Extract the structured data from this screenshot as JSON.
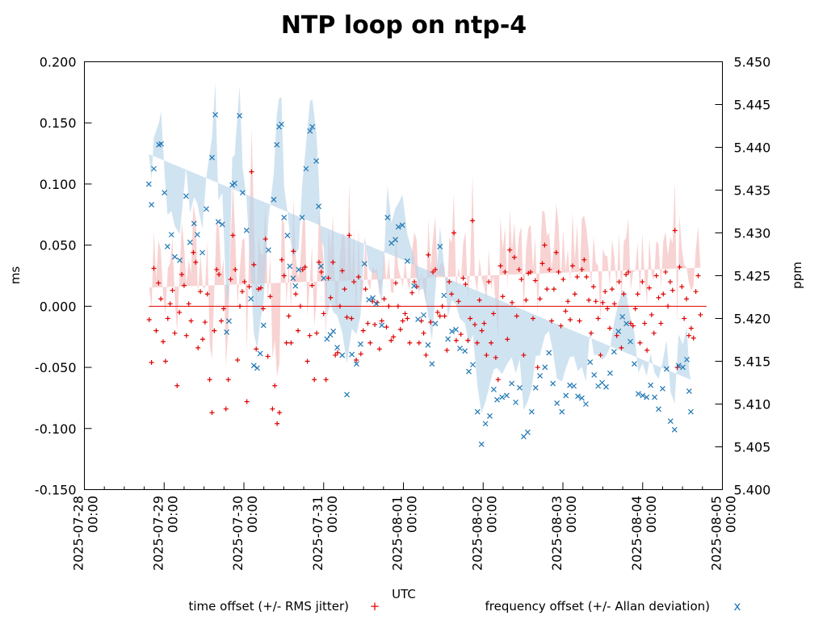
{
  "chart_data": {
    "type": "scatter",
    "title": "NTP loop on ntp-4",
    "xlabel": "UTC",
    "ylabel": "ms",
    "y2label": "ppm",
    "x_start": "2025-07-28 00:00",
    "x_unit": "hours since 2025-07-28 00:00",
    "xlim_hours": [
      0,
      192
    ],
    "ylim": [
      -0.15,
      0.2
    ],
    "y2lim": [
      5.4,
      5.45
    ],
    "grid": false,
    "legend_position": "bottom",
    "x_ticks": [
      {
        "hour": 0,
        "line1": "2025-07-28",
        "line2": "00:00"
      },
      {
        "hour": 24,
        "line1": "2025-07-29",
        "line2": "00:00"
      },
      {
        "hour": 48,
        "line1": "2025-07-30",
        "line2": "00:00"
      },
      {
        "hour": 72,
        "line1": "2025-07-31",
        "line2": "00:00"
      },
      {
        "hour": 96,
        "line1": "2025-08-01",
        "line2": "00:00"
      },
      {
        "hour": 120,
        "line1": "2025-08-02",
        "line2": "00:00"
      },
      {
        "hour": 144,
        "line1": "2025-08-03",
        "line2": "00:00"
      },
      {
        "hour": 168,
        "line1": "2025-08-04",
        "line2": "00:00"
      },
      {
        "hour": 192,
        "line1": "2025-08-05",
        "line2": "00:00"
      }
    ],
    "y_ticks": [
      "0.200",
      "0.150",
      "0.100",
      "0.050",
      "0.000",
      "-0.050",
      "-0.100",
      "-0.150"
    ],
    "y_tick_values": [
      0.2,
      0.15,
      0.1,
      0.05,
      0,
      -0.05,
      -0.1,
      -0.15
    ],
    "y2_ticks": [
      "5.450",
      "5.445",
      "5.440",
      "5.435",
      "5.430",
      "5.425",
      "5.420",
      "5.415",
      "5.410",
      "5.405",
      "5.400"
    ],
    "y2_tick_values": [
      5.45,
      5.445,
      5.44,
      5.435,
      5.43,
      5.425,
      5.42,
      5.415,
      5.41,
      5.405,
      5.4
    ],
    "mean_line": {
      "value": 0.0,
      "from_hour": 19.4,
      "to_hour": 187.2,
      "color": "#e00000"
    },
    "series": [
      {
        "name": "time offset (+/- RMS jitter)",
        "axis": "left",
        "marker": "+",
        "color": "#e00000",
        "band_color": "#f4b6b6",
        "x_hours": [
          19.5,
          20.2,
          20.9,
          21.6,
          22.3,
          23.0,
          23.7,
          24.4,
          25.1,
          25.8,
          26.5,
          27.2,
          27.9,
          28.6,
          29.3,
          30.0,
          30.7,
          31.4,
          32.1,
          32.8,
          33.5,
          34.2,
          34.9,
          35.6,
          36.3,
          37.0,
          37.7,
          38.4,
          39.1,
          39.8,
          40.5,
          41.2,
          41.9,
          42.6,
          43.3,
          44.0,
          44.7,
          45.4,
          46.1,
          46.8,
          47.5,
          48.2,
          48.9,
          49.6,
          50.3,
          51.0,
          51.7,
          52.4,
          53.1,
          53.8,
          54.5,
          55.2,
          55.9,
          56.6,
          57.3,
          58.0,
          58.7,
          59.4,
          60.1,
          60.8,
          61.5,
          62.2,
          62.9,
          63.6,
          64.3,
          65.0,
          65.7,
          66.4,
          67.1,
          67.8,
          68.5,
          69.2,
          69.9,
          70.6,
          71.3,
          72.0,
          72.7,
          73.4,
          74.1,
          74.8,
          75.5,
          76.2,
          76.9,
          77.6,
          78.3,
          79.0,
          79.7,
          80.4,
          81.1,
          81.8,
          82.5,
          83.2,
          83.9,
          84.6,
          85.3,
          86.0,
          86.7,
          87.4,
          88.1,
          88.8,
          89.5,
          90.2,
          90.9,
          91.6,
          92.3,
          93.0,
          93.7,
          94.4,
          95.1,
          95.8,
          96.5,
          97.2,
          97.9,
          98.6,
          99.3,
          100.0,
          100.7,
          101.4,
          102.1,
          102.8,
          103.5,
          104.2,
          104.9,
          105.6,
          106.3,
          107.0,
          107.7,
          108.4,
          109.1,
          109.8,
          110.5,
          111.2,
          111.9,
          112.6,
          113.3,
          114.0,
          114.7,
          115.4,
          116.1,
          116.8,
          117.5,
          118.2,
          118.9,
          119.6,
          120.3,
          121.0,
          121.7,
          122.4,
          123.1,
          123.8,
          124.5,
          125.2,
          125.9,
          126.6,
          127.3,
          128.0,
          128.7,
          129.4,
          130.1,
          130.8,
          131.5,
          132.2,
          132.9,
          133.6,
          134.3,
          135.0,
          135.7,
          136.4,
          137.1,
          137.8,
          138.5,
          139.2,
          139.9,
          140.6,
          141.3,
          142.0,
          142.7,
          143.4,
          144.1,
          144.8,
          145.5,
          146.2,
          146.9,
          147.6,
          148.3,
          149.0,
          149.7,
          150.4,
          151.1,
          151.8,
          152.5,
          153.2,
          153.9,
          154.6,
          155.3,
          156.0,
          156.7,
          157.4,
          158.1,
          158.8,
          159.5,
          160.2,
          160.9,
          161.6,
          162.3,
          163.0,
          163.7,
          164.4,
          165.1,
          165.8,
          166.5,
          167.2,
          167.9,
          168.6,
          169.3,
          170.0,
          170.7,
          171.4,
          172.1,
          172.8,
          173.5,
          174.2,
          174.9,
          175.6,
          176.3,
          177.0,
          177.7,
          178.4,
          179.1,
          179.8,
          180.5,
          181.2,
          181.9,
          182.6,
          183.3,
          184.0,
          184.7,
          185.4,
          186.1,
          186.8
        ],
        "values": [
          -0.011,
          -0.046,
          0.031,
          -0.02,
          0.019,
          0.006,
          -0.029,
          -0.045,
          -0.01,
          0.002,
          0.013,
          -0.022,
          -0.065,
          -0.005,
          0.026,
          0.017,
          -0.024,
          0.002,
          -0.012,
          0.044,
          0.036,
          -0.034,
          0.012,
          -0.027,
          -0.013,
          0.01,
          -0.06,
          -0.087,
          -0.02,
          0.03,
          0.026,
          -0.012,
          -0.002,
          -0.084,
          -0.06,
          0.022,
          0.058,
          0.03,
          -0.044,
          0.0,
          0.012,
          0.02,
          -0.078,
          0.016,
          0.11,
          0.034,
          -0.035,
          0.014,
          0.015,
          -0.002,
          0.055,
          -0.041,
          0.008,
          -0.084,
          -0.065,
          -0.096,
          -0.087,
          0.038,
          0.025,
          -0.03,
          -0.008,
          -0.03,
          0.045,
          0.01,
          -0.02,
          0.0,
          0.03,
          0.032,
          -0.045,
          -0.024,
          0.017,
          -0.06,
          -0.022,
          0.036,
          0.028,
          -0.006,
          -0.06,
          0.023,
          0.007,
          0.036,
          -0.04,
          -0.038,
          0.0,
          0.029,
          0.014,
          -0.009,
          0.058,
          -0.01,
          0.02,
          -0.044,
          0.024,
          -0.039,
          -0.02,
          0.014,
          -0.014,
          -0.03,
          0.004,
          -0.015,
          0.003,
          -0.035,
          -0.012,
          0.006,
          -0.017,
          0.0,
          -0.028,
          -0.025,
          0.019,
          0.0,
          -0.019,
          -0.012,
          -0.006,
          -0.01,
          -0.03,
          0.011,
          0.02,
          0.016,
          -0.03,
          -0.012,
          -0.022,
          -0.04,
          0.042,
          -0.013,
          0.028,
          0.03,
          -0.005,
          -0.008,
          0.0,
          -0.008,
          -0.036,
          0.02,
          0.01,
          0.06,
          -0.028,
          0.004,
          -0.023,
          0.023,
          0.018,
          -0.028,
          -0.01,
          0.07,
          -0.015,
          -0.03,
          0.005,
          -0.02,
          -0.014,
          -0.04,
          0.02,
          -0.03,
          -0.006,
          -0.042,
          -0.06,
          0.033,
          0.008,
          0.028,
          -0.027,
          0.046,
          0.003,
          0.04,
          -0.008,
          0.03,
          0.022,
          -0.04,
          0.005,
          0.027,
          0.028,
          -0.01,
          0.021,
          -0.05,
          0.006,
          0.035,
          0.05,
          0.014,
          0.03,
          -0.012,
          0.014,
          0.044,
          0.028,
          -0.016,
          0.022,
          -0.004,
          0.004,
          -0.011,
          0.033,
          0.01,
          0.024,
          -0.012,
          0.03,
          0.038,
          0.024,
          0.005,
          -0.022,
          0.016,
          0.004,
          -0.01,
          -0.04,
          0.003,
          0.012,
          -0.002,
          -0.018,
          0.014,
          0.002,
          -0.024,
          0.02,
          -0.034,
          0.01,
          0.026,
          0.028,
          -0.014,
          -0.016,
          -0.002,
          0.01,
          -0.03,
          0.02,
          -0.014,
          -0.036,
          0.015,
          -0.007,
          -0.022,
          0.025,
          0.007,
          -0.014,
          0.01,
          0.028,
          0.0,
          0.02,
          0.013,
          0.062,
          -0.05,
          0.032,
          0.016,
          -0.01,
          0.006,
          -0.024,
          -0.018,
          -0.026,
          0.012,
          0.025,
          -0.007
        ],
        "jitter_ms": 0.035
      },
      {
        "name": "frequency offset (+/- Allan deviation)",
        "axis": "right",
        "marker": "x",
        "color": "#1f77b4",
        "band_color": "#b7d4ea",
        "x_hours": [
          19.4,
          20.2,
          20.9,
          22.4,
          23.1,
          24.1,
          25.0,
          26.2,
          27.2,
          28.7,
          30.6,
          31.8,
          33.0,
          34.0,
          35.5,
          36.7,
          38.4,
          39.4,
          40.3,
          41.5,
          42.8,
          43.5,
          44.5,
          45.2,
          46.7,
          47.6,
          48.8,
          50.1,
          51.0,
          52.0,
          52.9,
          53.9,
          55.4,
          57.0,
          57.9,
          58.6,
          59.3,
          60.1,
          61.1,
          61.8,
          62.8,
          63.5,
          64.5,
          65.5,
          66.7,
          67.9,
          68.6,
          69.8,
          70.5,
          71.2,
          72.0,
          73.0,
          74.0,
          74.9,
          76.1,
          77.6,
          79.0,
          80.5,
          81.9,
          83.1,
          84.3,
          85.6,
          86.8,
          87.8,
          89.5,
          91.2,
          92.4,
          93.6,
          94.5,
          95.7,
          97.2,
          99.2,
          100.4,
          102.1,
          103.4,
          104.6,
          105.6,
          107.0,
          108.2,
          109.4,
          110.6,
          111.8,
          113.0,
          114.5,
          115.7,
          116.9,
          118.3,
          119.5,
          120.7,
          122.0,
          123.2,
          124.2,
          125.7,
          127.1,
          128.6,
          129.8,
          131.0,
          132.2,
          133.4,
          134.6,
          135.8,
          137.1,
          138.6,
          139.8,
          141.0,
          142.2,
          143.7,
          144.9,
          146.1,
          147.3,
          148.5,
          149.7,
          150.9,
          152.2,
          153.4,
          154.6,
          155.8,
          157.0,
          158.2,
          159.4,
          160.7,
          161.9,
          163.1,
          164.3,
          165.5,
          166.7,
          168.0,
          169.2,
          170.4,
          171.6,
          172.8,
          174.0,
          175.2,
          176.4,
          177.6,
          178.8,
          180.1,
          181.3,
          182.0,
          182.5,
          183.7,
          184.7
        ],
        "values": [
          5.4357,
          5.4333,
          5.4375,
          5.4403,
          5.4404,
          5.4347,
          5.4284,
          5.4298,
          5.4272,
          5.4268,
          5.4343,
          5.4289,
          5.4311,
          5.4298,
          5.4277,
          5.4328,
          5.4388,
          5.4438,
          5.4313,
          5.431,
          5.4184,
          5.4197,
          5.4356,
          5.4358,
          5.4437,
          5.4347,
          5.4303,
          5.4223,
          5.4145,
          5.4142,
          5.4159,
          5.4192,
          5.428,
          5.4339,
          5.4403,
          5.4424,
          5.4427,
          5.4318,
          5.4297,
          5.4261,
          5.4247,
          5.4238,
          5.4257,
          5.4318,
          5.4375,
          5.4419,
          5.4424,
          5.4384,
          5.4331,
          5.4261,
          5.4247,
          5.4176,
          5.4181,
          5.4185,
          5.4166,
          5.4157,
          5.4111,
          5.4158,
          5.4147,
          5.417,
          5.4264,
          5.4222,
          5.4224,
          5.4217,
          5.4192,
          5.4318,
          5.4288,
          5.4292,
          5.4307,
          5.4309,
          5.4267,
          5.4238,
          5.4199,
          5.4204,
          5.4169,
          5.4147,
          5.4194,
          5.4284,
          5.4227,
          5.4176,
          5.4185,
          5.4187,
          5.4165,
          5.4162,
          5.4138,
          5.4146,
          5.4091,
          5.4053,
          5.4077,
          5.4086,
          5.4117,
          5.4105,
          5.4108,
          5.411,
          5.4124,
          5.4102,
          5.4119,
          5.4062,
          5.4067,
          5.4091,
          5.4119,
          5.4133,
          5.4143,
          5.416,
          5.4124,
          5.4101,
          5.4091,
          5.411,
          5.4122,
          5.4121,
          5.4109,
          5.4107,
          5.41,
          5.4149,
          5.4134,
          5.4121,
          5.4125,
          5.412,
          5.4136,
          5.4161,
          5.4185,
          5.4202,
          5.4194,
          5.4173,
          5.4147,
          5.4112,
          5.411,
          5.4108,
          5.4122,
          5.4108,
          5.4094,
          5.4118,
          5.4141,
          5.408,
          5.407,
          5.4145,
          5.4143,
          5.4152,
          5.4115,
          5.4091
        ],
        "allan_ppm": 0.003
      }
    ]
  },
  "legend": {
    "time_offset_label": "time offset (+/- RMS jitter)",
    "time_offset_marker": "+",
    "freq_offset_label": "frequency offset (+/- Allan deviation)",
    "freq_offset_marker": "x"
  }
}
